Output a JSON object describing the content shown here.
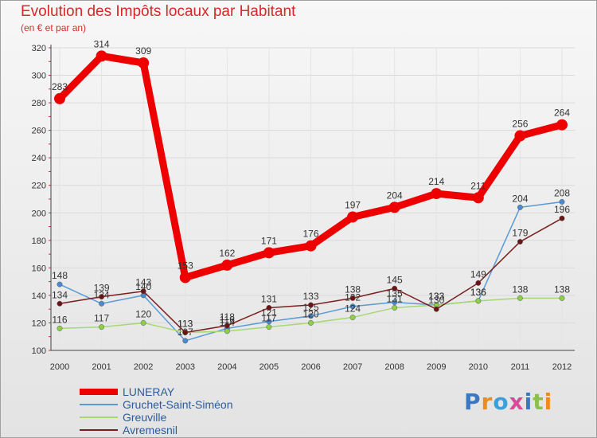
{
  "title": "Evolution des Impôts locaux par Habitant",
  "subtitle": "(en € et par an)",
  "brand": "Proxiti",
  "chart_data": {
    "type": "line",
    "title": "Evolution des Impôts locaux par Habitant",
    "ylabel": "(en € et par an)",
    "xlabel": "",
    "x": [
      "2000",
      "2001",
      "2002",
      "2003",
      "2004",
      "2005",
      "2006",
      "2007",
      "2008",
      "2009",
      "2010",
      "2011",
      "2012"
    ],
    "ylim": [
      100,
      320
    ],
    "yticks": [
      100,
      120,
      140,
      160,
      180,
      200,
      220,
      240,
      260,
      280,
      300,
      320
    ],
    "grid": true,
    "legend_position": "bottom-left",
    "series": [
      {
        "name": "LUNERAY",
        "color": "#ee0000",
        "emphasis": true,
        "values": [
          283,
          314,
          309,
          153,
          162,
          171,
          176,
          197,
          204,
          214,
          211,
          256,
          264
        ]
      },
      {
        "name": "Gruchet-Saint-Siméon",
        "color": "#5b9bd5",
        "marker": "#4a8ad0",
        "values": [
          148,
          134,
          140,
          107,
          116,
          121,
          125,
          132,
          135,
          133,
          136,
          204,
          208
        ]
      },
      {
        "name": "Greuville",
        "color": "#a6d870",
        "marker": "#8cd04a",
        "values": [
          116,
          117,
          120,
          113,
          114,
          117,
          120,
          124,
          131,
          133,
          136,
          138,
          138
        ]
      },
      {
        "name": "Avremesnil",
        "color": "#7a1f1f",
        "marker": "#6a1515",
        "values": [
          134,
          139,
          143,
          113,
          118,
          131,
          133,
          138,
          145,
          130,
          149,
          179,
          196
        ]
      }
    ]
  }
}
